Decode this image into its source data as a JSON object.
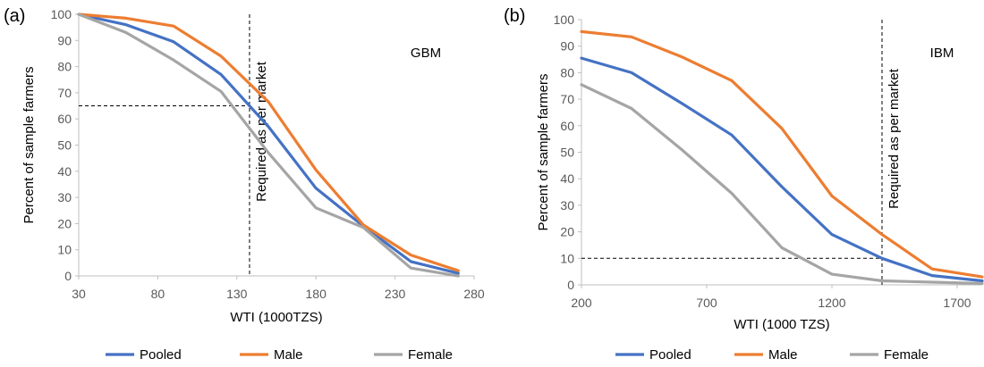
{
  "chart_data": [
    {
      "type": "line",
      "panel_label": "(a)",
      "annotation": "GBM",
      "market_label": "Required as per market",
      "xlabel": "WTI (1000TZS)",
      "ylabel": "Percent of sample farmers",
      "xlim": [
        30,
        280
      ],
      "ylim": [
        0,
        100
      ],
      "xticks": [
        30,
        80,
        130,
        180,
        230,
        280
      ],
      "yticks": [
        0,
        10,
        20,
        30,
        40,
        50,
        60,
        70,
        80,
        90,
        100
      ],
      "grid": false,
      "legend_position": "bottom",
      "reference_x": 138,
      "reference_y": 65,
      "x": [
        30,
        60,
        90,
        120,
        150,
        180,
        210,
        240,
        270
      ],
      "series": [
        {
          "name": "Pooled",
          "color": "#4472C4",
          "values": [
            100,
            96,
            89.5,
            77,
            57,
            33.5,
            19,
            5.5,
            1
          ]
        },
        {
          "name": "Male",
          "color": "#ED7D31",
          "values": [
            100,
            98.5,
            95.5,
            84,
            66.5,
            40.5,
            19.5,
            8,
            2
          ]
        },
        {
          "name": "Female",
          "color": "#A5A5A5",
          "values": [
            100,
            93,
            82.5,
            70.5,
            47,
            26,
            18.5,
            3,
            0
          ]
        }
      ]
    },
    {
      "type": "line",
      "panel_label": "(b)",
      "annotation": "IBM",
      "market_label": "Required as per market",
      "xlabel": "WTI (1000 TZS)",
      "ylabel": "Percent of sample farmers",
      "xlim": [
        200,
        1800
      ],
      "ylim": [
        0,
        100
      ],
      "xticks": [
        200,
        700,
        1200,
        1700
      ],
      "yticks": [
        0,
        10,
        20,
        30,
        40,
        50,
        60,
        70,
        80,
        90,
        100
      ],
      "grid": false,
      "legend_position": "bottom",
      "reference_x": 1400,
      "reference_y": 10,
      "x": [
        200,
        400,
        600,
        800,
        1000,
        1200,
        1400,
        1600,
        1800
      ],
      "series": [
        {
          "name": "Pooled",
          "color": "#4472C4",
          "values": [
            85.5,
            80,
            68.5,
            56.5,
            37,
            19,
            10,
            3.5,
            1.5
          ]
        },
        {
          "name": "Male",
          "color": "#ED7D31",
          "values": [
            95.5,
            93.5,
            86,
            77,
            59,
            33.5,
            19,
            6,
            3
          ]
        },
        {
          "name": "Female",
          "color": "#A5A5A5",
          "values": [
            75.5,
            66.5,
            51,
            34.5,
            14,
            4,
            1.5,
            1,
            0.5
          ]
        }
      ]
    }
  ]
}
